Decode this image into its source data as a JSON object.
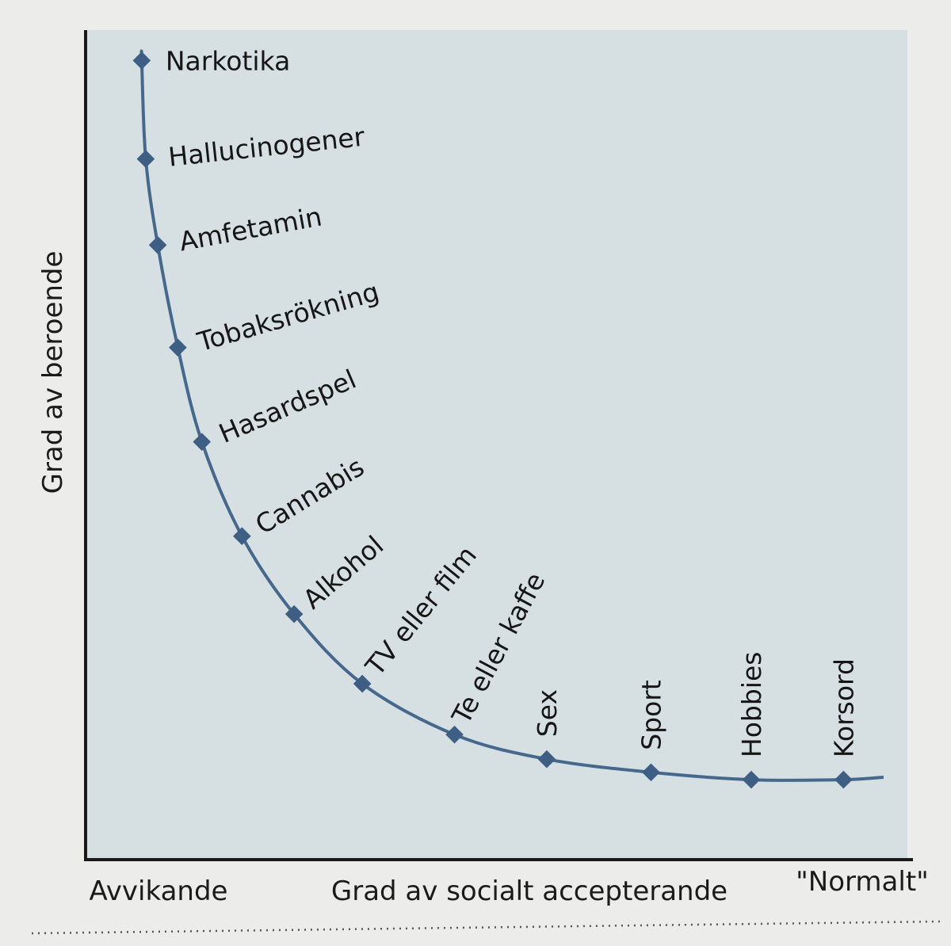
{
  "chart_data": {
    "type": "line",
    "ylabel": "Grad av beroende",
    "xlabel": "Grad av socialt accepterande",
    "x_left_label": "Avvikande",
    "x_right_label": "\"Normalt\"",
    "grid": false,
    "legend": "none",
    "xlim": [
      0,
      1
    ],
    "ylim": [
      0,
      1
    ],
    "colors": {
      "line": "#46688c",
      "marker": "#3e5f83",
      "panel": "#d6dfe2",
      "axis": "#1a1a1a"
    },
    "points": [
      {
        "label": "Narkotika",
        "x": 0.07,
        "y": 0.96
      },
      {
        "label": "Hallucinogener",
        "x": 0.075,
        "y": 0.84
      },
      {
        "label": "Amfetamin",
        "x": 0.09,
        "y": 0.735
      },
      {
        "label": "Tobaksrökning",
        "x": 0.115,
        "y": 0.61
      },
      {
        "label": "Hasardspel",
        "x": 0.145,
        "y": 0.495
      },
      {
        "label": "Cannabis",
        "x": 0.195,
        "y": 0.38
      },
      {
        "label": "Alkohol",
        "x": 0.26,
        "y": 0.285
      },
      {
        "label": "TV eller film",
        "x": 0.345,
        "y": 0.2
      },
      {
        "label": "Te eller kaffe",
        "x": 0.46,
        "y": 0.138
      },
      {
        "label": "Sex",
        "x": 0.575,
        "y": 0.108
      },
      {
        "label": "Sport",
        "x": 0.705,
        "y": 0.092
      },
      {
        "label": "Hobbies",
        "x": 0.83,
        "y": 0.083
      },
      {
        "label": "Korsord",
        "x": 0.945,
        "y": 0.083
      }
    ]
  }
}
